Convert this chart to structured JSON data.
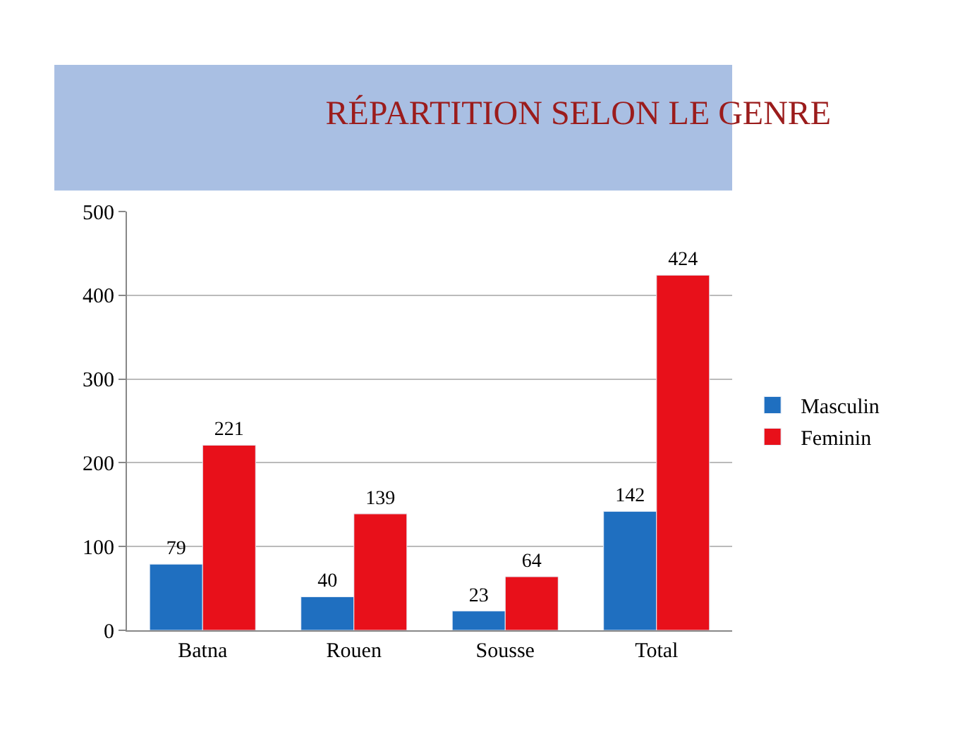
{
  "chart_data": {
    "type": "bar",
    "title": "RÉPARTITION SELON LE GENRE",
    "categories": [
      "Batna",
      "Rouen",
      "Sousse",
      "Total"
    ],
    "series": [
      {
        "name": "Masculin",
        "color": "#1f6fc0",
        "values": [
          79,
          40,
          23,
          142
        ]
      },
      {
        "name": "Feminin",
        "color": "#e8101a",
        "values": [
          221,
          139,
          64,
          424
        ]
      }
    ],
    "ylim": [
      0,
      500
    ],
    "yticks": [
      0,
      100,
      200,
      300,
      400,
      500
    ],
    "grid": "y",
    "legend": "right",
    "data_labels": true
  }
}
